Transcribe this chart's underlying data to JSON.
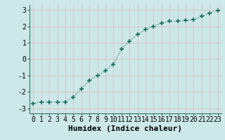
{
  "x": [
    0,
    1,
    2,
    3,
    4,
    5,
    6,
    7,
    8,
    9,
    10,
    11,
    12,
    13,
    14,
    15,
    16,
    17,
    18,
    19,
    20,
    21,
    22,
    23
  ],
  "y": [
    -2.7,
    -2.6,
    -2.6,
    -2.6,
    -2.6,
    -2.3,
    -1.8,
    -1.3,
    -1.0,
    -0.7,
    -0.3,
    0.6,
    1.1,
    1.5,
    1.8,
    2.0,
    2.2,
    2.3,
    2.3,
    2.35,
    2.4,
    2.6,
    2.8,
    2.95
  ],
  "xlabel": "Humidex (Indice chaleur)",
  "xlim": [
    -0.5,
    23.5
  ],
  "ylim": [
    -3.3,
    3.3
  ],
  "yticks": [
    -3,
    -2,
    -1,
    0,
    1,
    2,
    3
  ],
  "xticks": [
    0,
    1,
    2,
    3,
    4,
    5,
    6,
    7,
    8,
    9,
    10,
    11,
    12,
    13,
    14,
    15,
    16,
    17,
    18,
    19,
    20,
    21,
    22,
    23
  ],
  "line_color": "#1a6b5a",
  "marker": "+",
  "bg_color": "#cce8e8",
  "grid_color": "#d8b8b8",
  "xlabel_fontsize": 8,
  "tick_fontsize": 7,
  "linewidth": 0.8,
  "markersize": 4,
  "markeredgewidth": 1.2
}
